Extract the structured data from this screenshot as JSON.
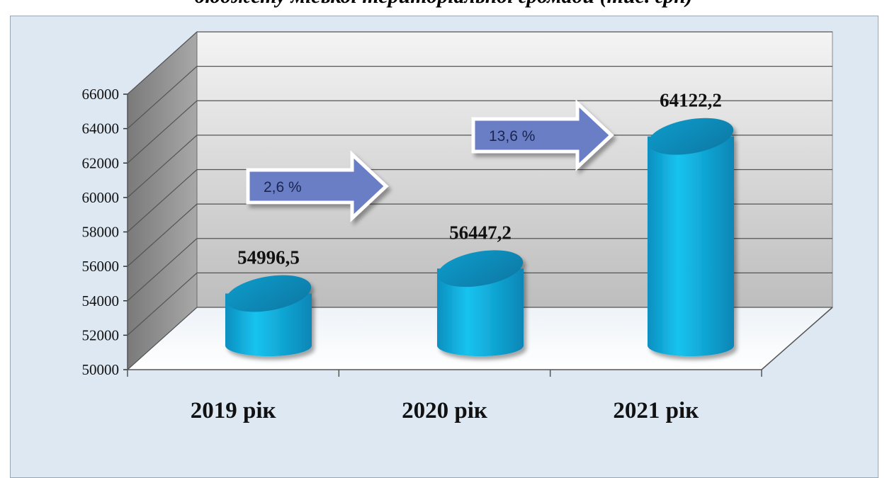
{
  "title_fragment": "бюджету міської територіальної громади (тис. грн)",
  "chart_data": {
    "type": "bar",
    "style": "3d-cylinder",
    "categories": [
      "2019 рік",
      "2020 рік",
      "2021 рік"
    ],
    "values": [
      54996.5,
      56447.2,
      64122.2
    ],
    "value_labels": [
      "54996,5",
      "56447,2",
      "64122,2"
    ],
    "ylim": [
      50000,
      66000
    ],
    "yticks": [
      "50000",
      "52000",
      "54000",
      "56000",
      "58000",
      "60000",
      "62000",
      "64000",
      "66000"
    ],
    "grid": true,
    "annotations": [
      {
        "text": "2,6 %",
        "from": "2019 рік",
        "to": "2020 рік"
      },
      {
        "text": "13,6 %",
        "from": "2020 рік",
        "to": "2021 рік"
      }
    ],
    "colors": {
      "bar": "#0aa3d6",
      "bar_top": "#0b86b3",
      "arrow": "#6b7ec6",
      "background": "#dde8f3"
    }
  }
}
